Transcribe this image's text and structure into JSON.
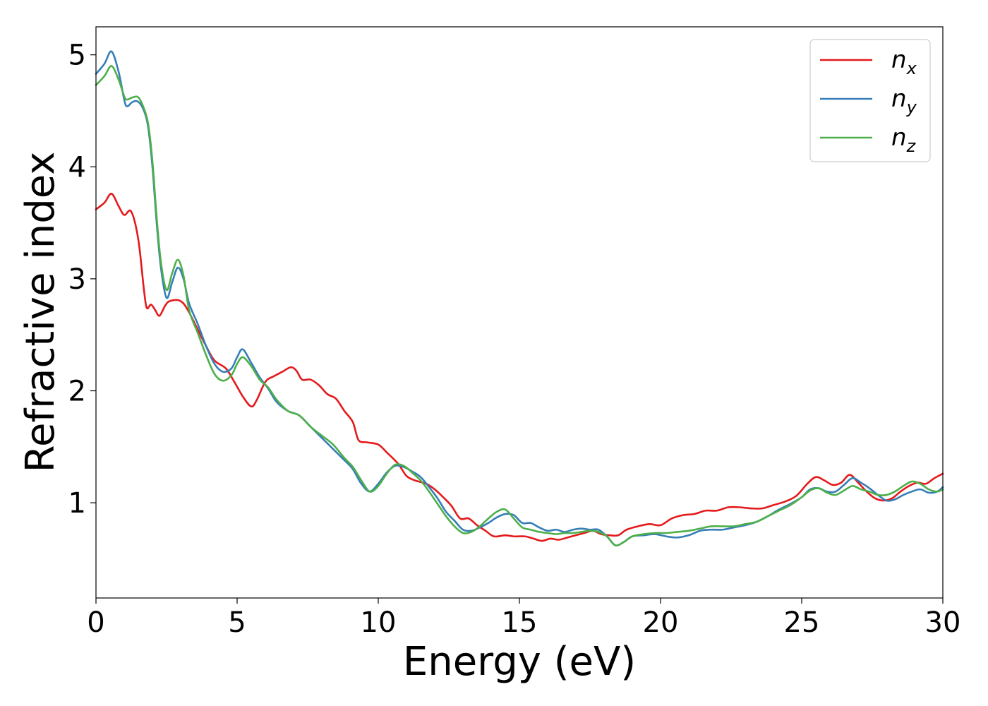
{
  "chart_data": {
    "type": "line",
    "title": "",
    "xlabel": "Energy (eV)",
    "ylabel": "Refractive index",
    "xlim": [
      0,
      30
    ],
    "ylim": [
      0.15,
      5.25
    ],
    "xticks": [
      0,
      5,
      10,
      15,
      20,
      25,
      30
    ],
    "yticks": [
      1,
      2,
      3,
      4,
      5
    ],
    "grid": false,
    "legend": "top-right",
    "series": [
      {
        "name": "n",
        "subscript": "x",
        "color": "#e41a1c",
        "x": [
          0,
          0.3,
          0.55,
          0.8,
          1.0,
          1.25,
          1.5,
          1.7,
          1.8,
          1.95,
          2.1,
          2.25,
          2.45,
          2.6,
          2.9,
          3.1,
          3.3,
          3.6,
          3.9,
          4.2,
          4.6,
          4.9,
          5.2,
          5.5,
          5.7,
          6.0,
          6.3,
          6.6,
          6.9,
          7.1,
          7.3,
          7.6,
          7.9,
          8.2,
          8.5,
          8.8,
          9.1,
          9.3,
          9.6,
          10.0,
          10.3,
          10.7,
          11.0,
          11.3,
          11.7,
          12.0,
          12.3,
          12.6,
          12.9,
          13.2,
          13.5,
          13.8,
          14.1,
          14.5,
          14.8,
          15.2,
          15.5,
          15.8,
          16.1,
          16.4,
          16.7,
          17.0,
          17.3,
          17.6,
          17.9,
          18.2,
          18.5,
          18.8,
          19.2,
          19.6,
          20.0,
          20.4,
          20.8,
          21.2,
          21.6,
          22.0,
          22.4,
          22.8,
          23.2,
          23.6,
          24.0,
          24.4,
          24.8,
          25.2,
          25.5,
          25.8,
          26.1,
          26.4,
          26.7,
          27.0,
          27.3,
          27.6,
          27.9,
          28.2,
          28.5,
          28.8,
          29.1,
          29.4,
          29.7,
          30.0
        ],
        "y": [
          3.62,
          3.68,
          3.76,
          3.65,
          3.57,
          3.6,
          3.35,
          2.9,
          2.74,
          2.77,
          2.72,
          2.67,
          2.76,
          2.8,
          2.81,
          2.78,
          2.7,
          2.55,
          2.4,
          2.27,
          2.2,
          2.08,
          1.95,
          1.86,
          1.92,
          2.08,
          2.13,
          2.17,
          2.21,
          2.18,
          2.1,
          2.1,
          2.05,
          1.97,
          1.93,
          1.82,
          1.72,
          1.56,
          1.54,
          1.52,
          1.45,
          1.35,
          1.24,
          1.2,
          1.17,
          1.12,
          1.05,
          0.97,
          0.86,
          0.86,
          0.8,
          0.75,
          0.7,
          0.71,
          0.7,
          0.7,
          0.68,
          0.66,
          0.68,
          0.67,
          0.69,
          0.71,
          0.73,
          0.75,
          0.72,
          0.71,
          0.71,
          0.76,
          0.79,
          0.81,
          0.8,
          0.86,
          0.89,
          0.9,
          0.93,
          0.93,
          0.96,
          0.96,
          0.95,
          0.95,
          0.98,
          1.01,
          1.06,
          1.17,
          1.23,
          1.2,
          1.16,
          1.18,
          1.25,
          1.18,
          1.1,
          1.04,
          1.02,
          1.04,
          1.1,
          1.15,
          1.18,
          1.17,
          1.22,
          1.26
        ]
      },
      {
        "name": "n",
        "subscript": "y",
        "color": "#377eb8",
        "x": [
          0,
          0.3,
          0.55,
          0.8,
          1.0,
          1.1,
          1.3,
          1.5,
          1.7,
          1.85,
          2.0,
          2.15,
          2.3,
          2.5,
          2.7,
          2.9,
          3.1,
          3.3,
          3.6,
          3.9,
          4.2,
          4.5,
          4.8,
          5.0,
          5.2,
          5.5,
          5.8,
          6.1,
          6.4,
          6.8,
          7.2,
          7.6,
          8.0,
          8.4,
          8.8,
          9.1,
          9.4,
          9.7,
          10.0,
          10.3,
          10.6,
          10.9,
          11.2,
          11.5,
          11.8,
          12.1,
          12.4,
          12.7,
          13.0,
          13.3,
          13.6,
          13.9,
          14.2,
          14.5,
          14.8,
          15.1,
          15.4,
          15.7,
          16.0,
          16.3,
          16.6,
          16.9,
          17.2,
          17.5,
          17.8,
          18.1,
          18.4,
          18.7,
          19.0,
          19.4,
          19.8,
          20.2,
          20.6,
          21.0,
          21.4,
          21.8,
          22.2,
          22.6,
          23.0,
          23.4,
          23.8,
          24.2,
          24.6,
          25.0,
          25.3,
          25.6,
          25.9,
          26.2,
          26.5,
          26.8,
          27.1,
          27.4,
          27.7,
          28.0,
          28.3,
          28.6,
          28.9,
          29.2,
          29.5,
          29.8,
          30.0
        ],
        "y": [
          4.83,
          4.92,
          5.03,
          4.85,
          4.6,
          4.54,
          4.58,
          4.58,
          4.5,
          4.35,
          4.0,
          3.5,
          3.1,
          2.83,
          2.97,
          3.1,
          3.0,
          2.78,
          2.6,
          2.4,
          2.24,
          2.17,
          2.2,
          2.3,
          2.37,
          2.25,
          2.12,
          2.02,
          1.9,
          1.82,
          1.78,
          1.68,
          1.58,
          1.48,
          1.38,
          1.3,
          1.17,
          1.1,
          1.17,
          1.27,
          1.33,
          1.32,
          1.28,
          1.23,
          1.14,
          1.04,
          0.92,
          0.84,
          0.76,
          0.75,
          0.78,
          0.82,
          0.87,
          0.9,
          0.89,
          0.82,
          0.82,
          0.78,
          0.75,
          0.76,
          0.74,
          0.76,
          0.77,
          0.76,
          0.76,
          0.7,
          0.62,
          0.65,
          0.7,
          0.71,
          0.72,
          0.7,
          0.69,
          0.71,
          0.75,
          0.76,
          0.76,
          0.78,
          0.8,
          0.83,
          0.88,
          0.94,
          0.99,
          1.05,
          1.12,
          1.13,
          1.1,
          1.1,
          1.16,
          1.22,
          1.18,
          1.13,
          1.07,
          1.02,
          1.03,
          1.07,
          1.1,
          1.12,
          1.09,
          1.1,
          1.14
        ]
      },
      {
        "name": "n",
        "subscript": "z",
        "color": "#4daf4a",
        "x": [
          0,
          0.3,
          0.55,
          0.8,
          1.0,
          1.1,
          1.3,
          1.5,
          1.7,
          1.85,
          2.0,
          2.15,
          2.3,
          2.5,
          2.7,
          2.9,
          3.1,
          3.3,
          3.6,
          3.9,
          4.2,
          4.5,
          4.8,
          5.0,
          5.2,
          5.5,
          5.8,
          6.1,
          6.4,
          6.8,
          7.2,
          7.6,
          8.0,
          8.4,
          8.8,
          9.1,
          9.4,
          9.7,
          10.0,
          10.3,
          10.6,
          10.9,
          11.2,
          11.5,
          11.8,
          12.1,
          12.4,
          12.7,
          13.0,
          13.3,
          13.6,
          13.9,
          14.2,
          14.5,
          14.8,
          15.1,
          15.4,
          15.7,
          16.0,
          16.3,
          16.6,
          16.9,
          17.2,
          17.5,
          17.8,
          18.1,
          18.4,
          18.7,
          19.0,
          19.4,
          19.8,
          20.2,
          20.6,
          21.0,
          21.4,
          21.8,
          22.2,
          22.6,
          23.0,
          23.4,
          23.8,
          24.2,
          24.6,
          25.0,
          25.3,
          25.6,
          25.9,
          26.2,
          26.5,
          26.8,
          27.1,
          27.4,
          27.7,
          28.0,
          28.3,
          28.6,
          28.9,
          29.2,
          29.5,
          29.8,
          30.0
        ],
        "y": [
          4.73,
          4.81,
          4.9,
          4.78,
          4.63,
          4.6,
          4.62,
          4.62,
          4.52,
          4.38,
          4.05,
          3.55,
          3.15,
          2.9,
          3.05,
          3.17,
          3.03,
          2.72,
          2.52,
          2.32,
          2.15,
          2.09,
          2.14,
          2.24,
          2.3,
          2.22,
          2.1,
          2.03,
          1.92,
          1.82,
          1.78,
          1.68,
          1.6,
          1.52,
          1.4,
          1.32,
          1.2,
          1.1,
          1.15,
          1.26,
          1.34,
          1.33,
          1.27,
          1.2,
          1.1,
          0.99,
          0.88,
          0.79,
          0.73,
          0.74,
          0.79,
          0.86,
          0.92,
          0.94,
          0.86,
          0.78,
          0.76,
          0.74,
          0.73,
          0.72,
          0.73,
          0.73,
          0.74,
          0.75,
          0.74,
          0.7,
          0.62,
          0.65,
          0.7,
          0.72,
          0.73,
          0.73,
          0.74,
          0.75,
          0.77,
          0.79,
          0.79,
          0.79,
          0.81,
          0.83,
          0.88,
          0.93,
          0.98,
          1.05,
          1.11,
          1.13,
          1.09,
          1.07,
          1.11,
          1.15,
          1.12,
          1.1,
          1.07,
          1.07,
          1.1,
          1.15,
          1.19,
          1.17,
          1.12,
          1.1,
          1.12
        ]
      }
    ]
  }
}
